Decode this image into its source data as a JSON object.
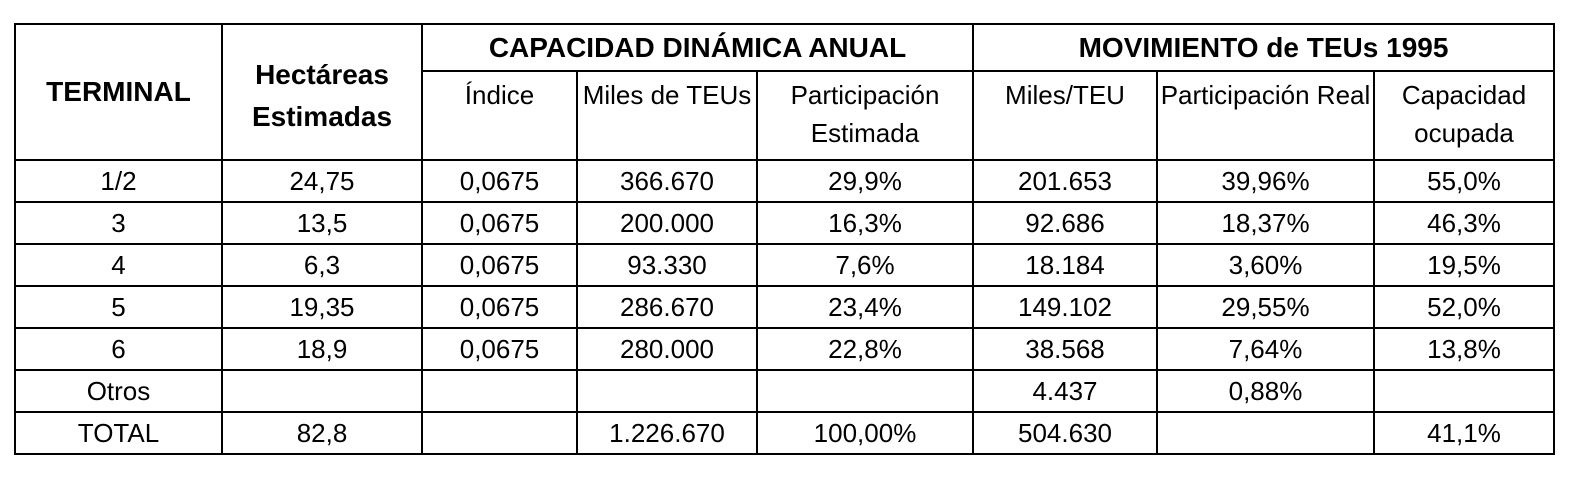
{
  "table": {
    "headers": {
      "terminal": "TERMINAL",
      "hectareas": "Hectáreas Estimadas",
      "capacidad_group": "CAPACIDAD DINÁMICA ANUAL",
      "movimiento_group": "MOVIMIENTO de TEUs 1995",
      "indice": "Índice",
      "miles_teus": "Miles de TEUs",
      "participacion_estimada": "Participación Estimada",
      "miles_teu": "Miles/TEU",
      "participacion_real": "Participación Real",
      "capacidad_ocupada": "Capacidad ocupada"
    },
    "rows": [
      [
        "1/2",
        "24,75",
        "0,0675",
        "366.670",
        "29,9%",
        "201.653",
        "39,96%",
        "55,0%"
      ],
      [
        "3",
        "13,5",
        "0,0675",
        "200.000",
        "16,3%",
        "92.686",
        "18,37%",
        "46,3%"
      ],
      [
        "4",
        "6,3",
        "0,0675",
        "93.330",
        "7,6%",
        "18.184",
        "3,60%",
        "19,5%"
      ],
      [
        "5",
        "19,35",
        "0,0675",
        "286.670",
        "23,4%",
        "149.102",
        "29,55%",
        "52,0%"
      ],
      [
        "6",
        "18,9",
        "0,0675",
        "280.000",
        "22,8%",
        "38.568",
        "7,64%",
        "13,8%"
      ],
      [
        "Otros",
        "",
        "",
        "",
        "",
        "4.437",
        "0,88%",
        ""
      ],
      [
        "TOTAL",
        "82,8",
        "",
        "1.226.670",
        "100,00%",
        "504.630",
        "",
        "41,1%"
      ]
    ]
  }
}
